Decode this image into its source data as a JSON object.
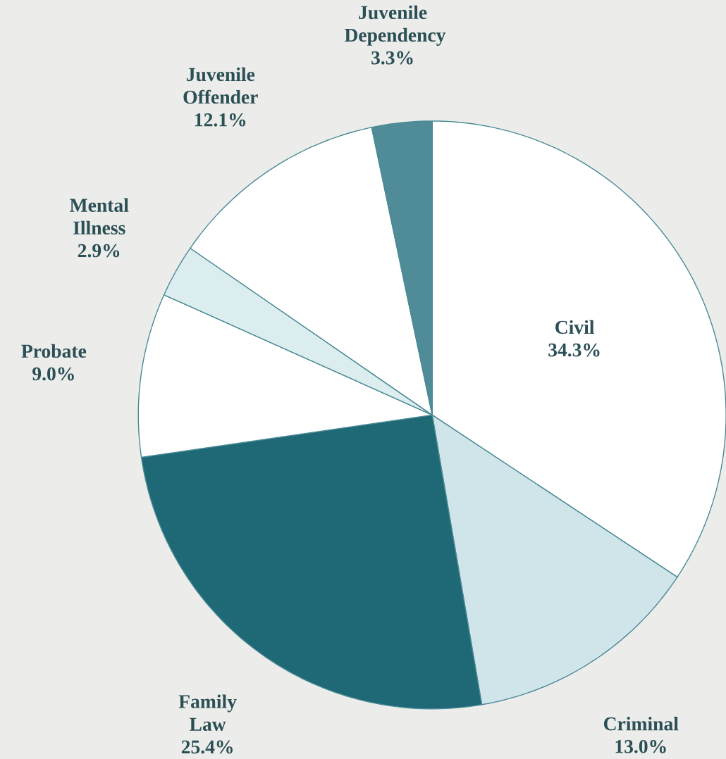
{
  "chart_data": {
    "type": "pie",
    "categories": [
      "Civil",
      "Criminal",
      "Family Law",
      "Probate",
      "Mental Illness",
      "Juvenile Offender",
      "Juvenile Dependency"
    ],
    "values": [
      34.3,
      13.0,
      25.4,
      9.0,
      2.9,
      12.1,
      3.3
    ],
    "value_labels": [
      "34.3%",
      "13.0%",
      "25.4%",
      "9.0%",
      "2.9%",
      "12.1%",
      "3.3%"
    ],
    "colors": [
      "#ffffff",
      "#cfe5e9",
      "#1f6977",
      "#ffffff",
      "#dcedf0",
      "#ffffff",
      "#4f8c97"
    ]
  }
}
